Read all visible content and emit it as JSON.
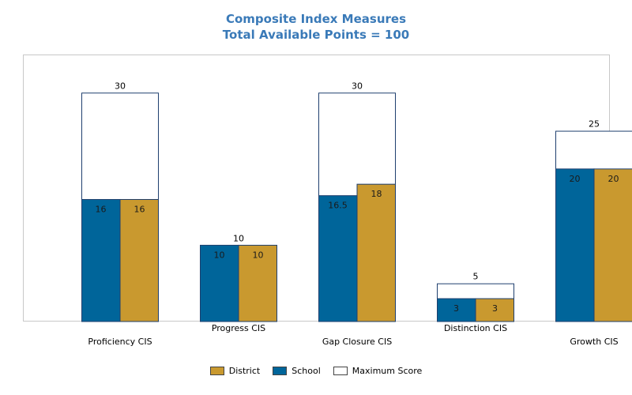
{
  "chart_data": {
    "type": "bar",
    "title": "Composite Index Measures",
    "subtitle": "Total Available Points = 100",
    "categories": [
      "Proficiency CIS",
      "Progress CIS",
      "Gap Closure CIS",
      "Distinction CIS",
      "Growth CIS"
    ],
    "series": [
      {
        "name": "School",
        "values": [
          16,
          10,
          16.5,
          3,
          20
        ],
        "labels": [
          "16",
          "10",
          "16.5",
          "3",
          "20"
        ],
        "color": "#00659a"
      },
      {
        "name": "District",
        "values": [
          16,
          10,
          18,
          3,
          20
        ],
        "labels": [
          "16",
          "10",
          "18",
          "3",
          "20"
        ],
        "color": "#c9992f"
      },
      {
        "name": "Maximum Score",
        "values": [
          30,
          10,
          30,
          5,
          25
        ],
        "labels": [
          "30",
          "10",
          "30",
          "5",
          "25"
        ],
        "color": "#ffffff"
      }
    ],
    "legend": [
      {
        "name": "District",
        "color": "#c9992f"
      },
      {
        "name": "School",
        "color": "#00659a"
      },
      {
        "name": "Maximum Score",
        "color": "#ffffff"
      }
    ],
    "legend_position": "bottom",
    "ylim": [
      0,
      35
    ],
    "grid": false
  }
}
